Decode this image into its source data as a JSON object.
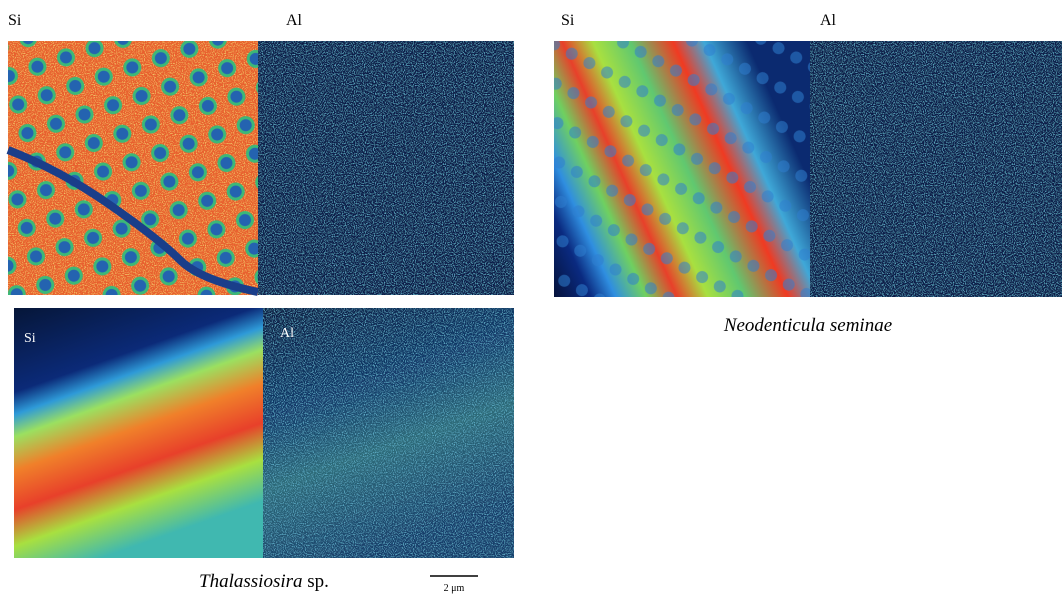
{
  "top_left": {
    "labels": [
      "Si",
      "Al"
    ]
  },
  "top_right": {
    "labels": [
      "Si",
      "Al"
    ],
    "caption": "Neodenticula seminae"
  },
  "bottom_left": {
    "labels": [
      "Si",
      "Al"
    ],
    "caption_italic": "Thalassiosira",
    "caption_rest": "sp."
  },
  "scale_bar": "2 μm"
}
